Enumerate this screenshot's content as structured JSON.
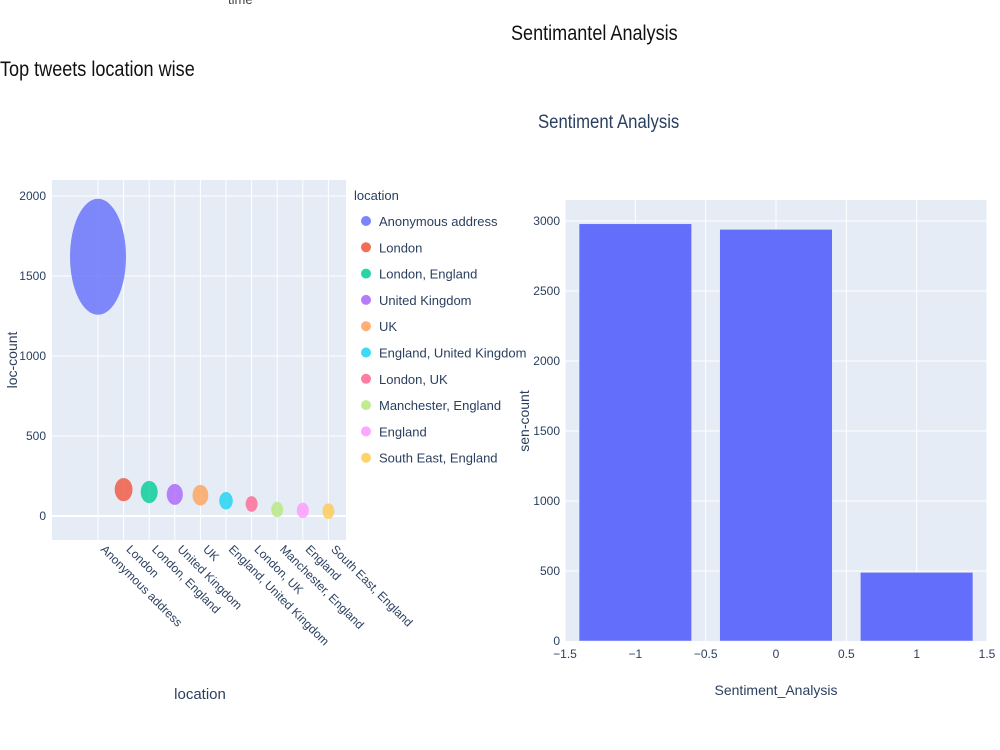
{
  "page": {
    "cut_text": "time",
    "title": "Sentimantel Analysis"
  },
  "chart_data": [
    {
      "type": "scatter",
      "subtype": "bubble",
      "title": "Top tweets location wise",
      "xlabel": "location",
      "ylabel": "loc-count",
      "ylim": [
        -150,
        2100
      ],
      "yticks": [
        0,
        500,
        1000,
        1500,
        2000
      ],
      "grid": true,
      "legend_title": "location",
      "legend_position": "right",
      "categories": [
        "Anonymous address",
        "London",
        "London, England",
        "United Kingdom",
        "UK",
        "England, United Kingdom",
        "London, UK",
        "Manchester, England",
        "England",
        "South East, England"
      ],
      "values": [
        1620,
        165,
        150,
        135,
        130,
        95,
        75,
        40,
        35,
        30
      ],
      "colors": [
        "#636efa",
        "#EF553B",
        "#00cc96",
        "#ab63fa",
        "#FFA15A",
        "#19d3f3",
        "#FF6692",
        "#B6E880",
        "#FF97FF",
        "#FECB52"
      ]
    },
    {
      "type": "bar",
      "title": "Sentiment Analysis",
      "xlabel": "Sentiment_Analysis",
      "ylabel": "sen-count",
      "xlim": [
        -1.5,
        1.5
      ],
      "ylim": [
        0,
        3150
      ],
      "xticks": [
        -1.5,
        -1,
        -0.5,
        0,
        0.5,
        1,
        1.5
      ],
      "xtick_labels": [
        "−1.5",
        "−1",
        "−0.5",
        "0",
        "0.5",
        "1",
        "1.5"
      ],
      "yticks": [
        0,
        500,
        1000,
        1500,
        2000,
        2500,
        3000
      ],
      "grid": true,
      "categories": [
        -1,
        0,
        1
      ],
      "values": [
        2980,
        2940,
        490
      ],
      "bar_color": "#636efa"
    }
  ]
}
